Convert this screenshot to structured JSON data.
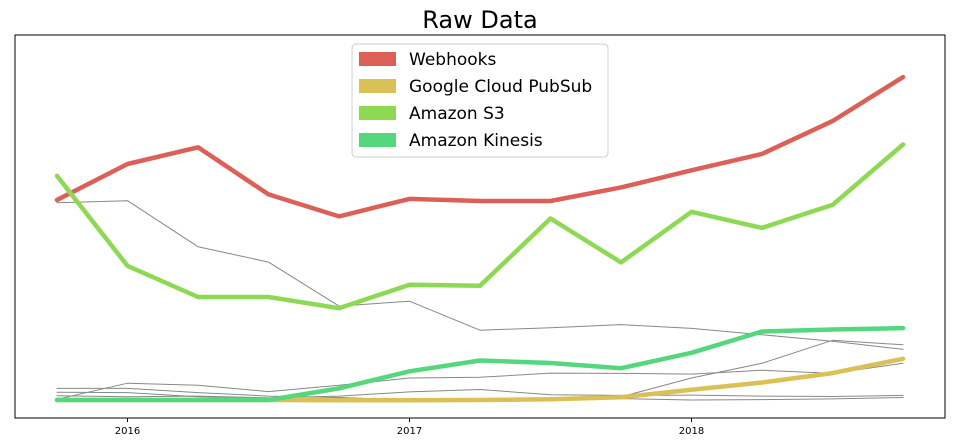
{
  "chart_data": {
    "type": "line",
    "title": "Raw Data",
    "xlabel": "",
    "ylabel": "",
    "x_ticks": [
      "2016",
      "2017",
      "2018"
    ],
    "x": [
      "2015-10",
      "2016-01",
      "2016-04",
      "2016-07",
      "2016-10",
      "2017-01",
      "2017-04",
      "2017-07",
      "2017-10",
      "2018-01",
      "2018-04",
      "2018-07",
      "2018-10"
    ],
    "ylim": [
      0,
      100
    ],
    "y_ticks_visible": false,
    "grid": false,
    "legend_position": "top-center",
    "series": [
      {
        "name": "Webhooks",
        "color": "#dc6058",
        "highlight": true,
        "values": [
          57.6,
          67.9,
          72.7,
          59.2,
          52.9,
          57.9,
          57.3,
          57.3,
          61.2,
          66.1,
          70.8,
          80.2,
          92.8
        ]
      },
      {
        "name": "Google Cloud PubSub",
        "color": "#d9c156",
        "highlight": true,
        "values": [
          0.3,
          0.3,
          0.3,
          0.3,
          0.2,
          0.2,
          0.3,
          0.5,
          1.1,
          3.2,
          5.3,
          8.0,
          12.1
        ]
      },
      {
        "name": "Amazon S3",
        "color": "#8ed953",
        "highlight": true,
        "values": [
          64.5,
          38.7,
          29.8,
          29.8,
          26.6,
          33.3,
          33.0,
          52.3,
          39.7,
          54.2,
          49.6,
          56.2,
          73.5
        ]
      },
      {
        "name": "Amazon Kinesis",
        "color": "#55d77e",
        "highlight": true,
        "values": [
          0.3,
          0.3,
          0.3,
          0.3,
          3.6,
          8.5,
          11.6,
          10.9,
          9.4,
          13.8,
          19.9,
          20.5,
          20.9
        ]
      },
      {
        "name": "",
        "color": "#888888",
        "highlight": false,
        "values": [
          56.8,
          57.4,
          44.2,
          39.8,
          27.2,
          28.6,
          20.3,
          21.0,
          21.9,
          20.8,
          19.0,
          17.1,
          14.8
        ]
      },
      {
        "name": "",
        "color": "#888888",
        "highlight": false,
        "values": [
          3.6,
          3.6,
          2.4,
          1.4,
          1.0,
          0.3,
          0.4,
          0.6,
          1.2,
          6.6,
          10.8,
          17.4,
          16.1
        ]
      },
      {
        "name": "",
        "color": "#888888",
        "highlight": false,
        "values": [
          0.5,
          5.1,
          4.5,
          2.7,
          4.5,
          6.6,
          6.8,
          8.0,
          7.9,
          7.7,
          8.8,
          7.9,
          10.8
        ]
      },
      {
        "name": "",
        "color": "#888888",
        "highlight": false,
        "values": [
          2.5,
          2.4,
          1.2,
          0.9,
          1.4,
          2.6,
          3.3,
          1.8,
          1.6,
          1.7,
          1.4,
          1.3,
          1.6
        ]
      },
      {
        "name": "",
        "color": "#888888",
        "highlight": false,
        "values": [
          1.5,
          1.2,
          1.4,
          0.9,
          0.5,
          0.4,
          0.4,
          0.5,
          0.7,
          0.3,
          0.4,
          0.6,
          1.0
        ]
      }
    ]
  }
}
